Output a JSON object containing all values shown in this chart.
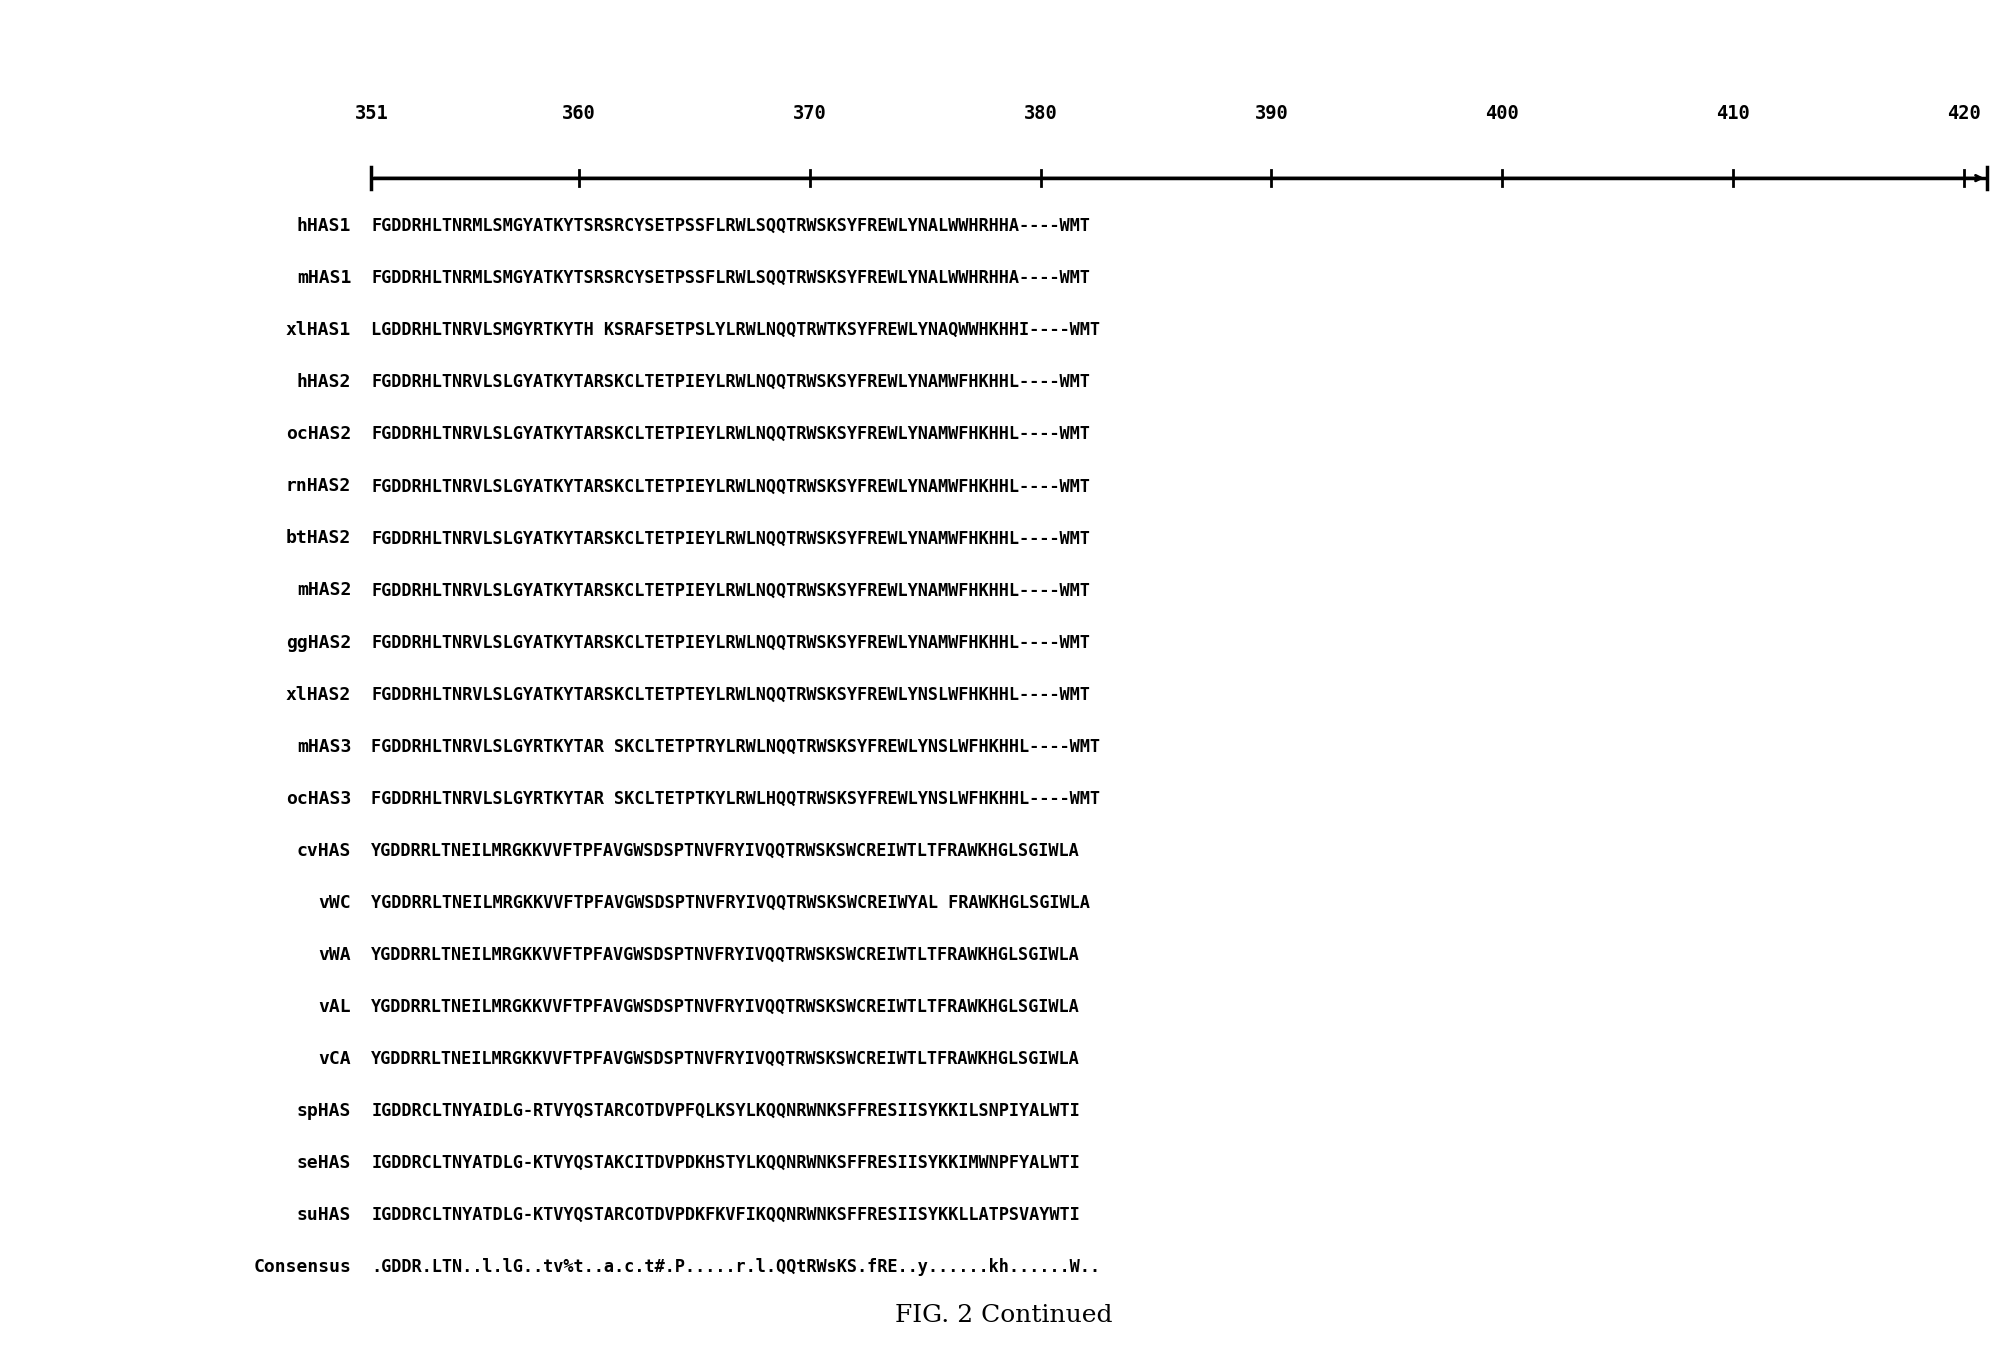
{
  "title": "FIG. 2 Continued",
  "ruler_labels": [
    "351",
    "360",
    "370",
    "380",
    "390",
    "400",
    "410",
    "420"
  ],
  "sequences": [
    [
      "hHAS1",
      "FGDDRHLTNRMLSMGYATKYTSRSRCYSETPSSFLRWLSQQTRWSKSYFREWLYNALWWHRHHA----WMT"
    ],
    [
      "mHAS1",
      "FGDDRHLTNRMLSMGYATKYTSRSRCYSETPSSFLRWLSQQTRWSKSYFREWLYNALWWHRHHA----WMT"
    ],
    [
      "xlHAS1",
      "LGDDRHLTNRVLSMGYRTKYTH KSRAFSETPSLYLRWLNQQTRWTKSYFREWLYNAQWWHKHHI----WMT"
    ],
    [
      "hHAS2",
      "FGDDRHLTNRVLSLGYATKYTARSKCLTETPIEYLRWLNQQTRWSKSYFREWLYNAMWFHKHHL----WMT"
    ],
    [
      "ocHAS2",
      "FGDDRHLTNRVLSLGYATKYTARSKCLTETPIEYLRWLNQQTRWSKSYFREWLYNAMWFHKHHL----WMT"
    ],
    [
      "rnHAS2",
      "FGDDRHLTNRVLSLGYATKYTARSKCLTETPIEYLRWLNQQTRWSKSYFREWLYNAMWFHKHHL----WMT"
    ],
    [
      "btHAS2",
      "FGDDRHLTNRVLSLGYATKYTARSKCLTETPIEYLRWLNQQTRWSKSYFREWLYNAMWFHKHHL----WMT"
    ],
    [
      "mHAS2",
      "FGDDRHLTNRVLSLGYATKYTARSKCLTETPIEYLRWLNQQTRWSKSYFREWLYNAMWFHKHHL----WMT"
    ],
    [
      "ggHAS2",
      "FGDDRHLTNRVLSLGYATKYTARSKCLTETPIEYLRWLNQQTRWSKSYFREWLYNAMWFHKHHL----WMT"
    ],
    [
      "xlHAS2",
      "FGDDRHLTNRVLSLGYATKYTARSKCLTETPTEYLRWLNQQTRWSKSYFREWLYNSLWFHKHHL----WMT"
    ],
    [
      "mHAS3",
      "FGDDRHLTNRVLSLGYRTKYTAR SKCLTETPTRYLRWLNQQTRWSKSYFREWLYNSLWFHKHHL----WMT"
    ],
    [
      "ocHAS3",
      "FGDDRHLTNRVLSLGYRTKYTAR SKCLTETPTKYLRWLHQQTRWSKSYFREWLYNSLWFHKHHL----WMT"
    ],
    [
      "cvHAS",
      "YGDDRRLTNEILMRGKKVVFTPFAVGWSDSPTNVFRYIVQQTRWSKSWCREIWTLTFRAWKHGLSGIWLA"
    ],
    [
      "vWC",
      "YGDDRRLTNEILMRGKKVVFTPFAVGWSDSPTNVFRYIVQQTRWSKSWCREIWYAL FRAWKHGLSGIWLA"
    ],
    [
      "vWA",
      "YGDDRRLTNEILMRGKKVVFTPFAVGWSDSPTNVFRYIVQQTRWSKSWCREIWTLTFRAWKHGLSGIWLA"
    ],
    [
      "vAL",
      "YGDDRRLTNEILMRGKKVVFTPFAVGWSDSPTNVFRYIVQQTRWSKSWCREIWTLTFRAWKHGLSGIWLA"
    ],
    [
      "vCA",
      "YGDDRRLTNEILMRGKKVVFTPFAVGWSDSPTNVFRYIVQQTRWSKSWCREIWTLTFRAWKHGLSGIWLA"
    ],
    [
      "spHAS",
      "IGDDRCLTNYAIDLG-RTVYQSTARCOTDVPFQLKSYLKQQNRWNKSFFRESIISYKKILSNPIYALWTI"
    ],
    [
      "seHAS",
      "IGDDRCLTNYATDLG-KTVYQSTAKCITDVPDKHSTYLKQQNRWNKSFFRESIISYKKIMWNPFYALWTI"
    ],
    [
      "suHAS",
      "IGDDRCLTNYATDLG-KTVYQSTARCOTDVPDKFKVFIKQQNRWNKSFFRESIISYKKLLATPSVAYWTI"
    ],
    [
      "Consensus",
      ".GDDR.LTN..l.lG..tv%t..a.c.t#.P.....r.l.QQtRWsKS.fRE..y......kh......W.."
    ]
  ],
  "bg_color": "#ffffff",
  "text_color": "#000000",
  "title_fontsize": 18
}
